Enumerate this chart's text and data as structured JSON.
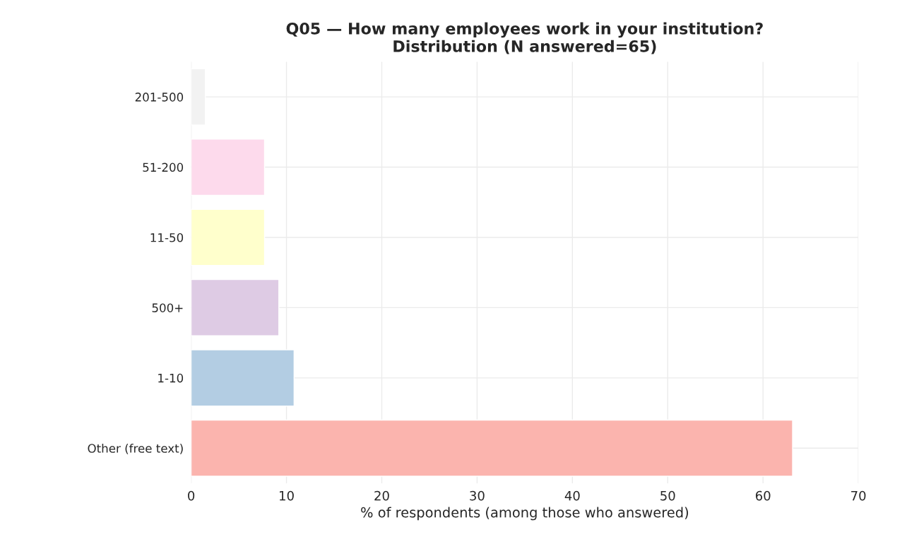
{
  "chart_data": {
    "type": "bar",
    "orientation": "horizontal",
    "title": "Q05 — How many employees work in your institution?\nDistribution (N answered=65)",
    "xlabel": "% of respondents (among those who answered)",
    "categories": [
      "201-500",
      "51-200",
      "11-50",
      "500+",
      "1-10",
      "Other (free text)"
    ],
    "values": [
      1.5,
      7.7,
      7.7,
      9.2,
      10.8,
      63.1
    ],
    "colors": [
      "#f2f2f2",
      "#fddaec",
      "#ffffcc",
      "#decbe4",
      "#b3cde3",
      "#fbb4ae"
    ],
    "xlim": [
      0,
      70
    ],
    "xticks": [
      0,
      10,
      20,
      30,
      40,
      50,
      60,
      70
    ],
    "grid": true
  }
}
